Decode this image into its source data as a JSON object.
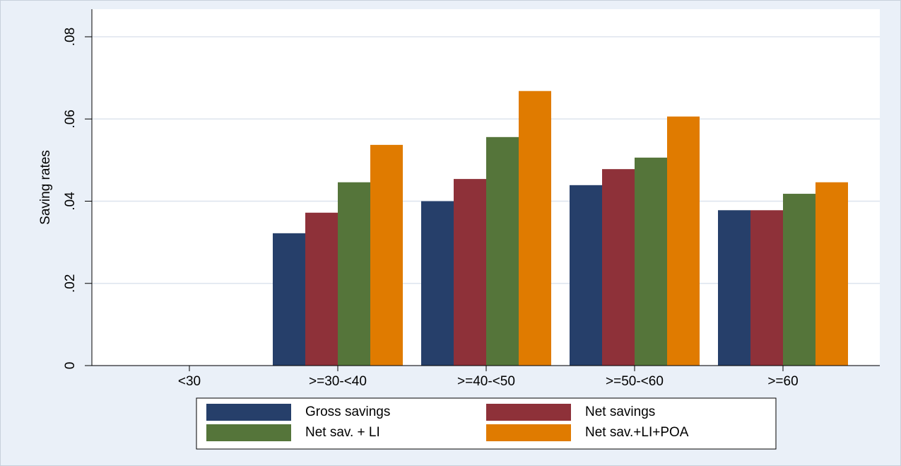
{
  "chart_data": {
    "type": "bar",
    "y_label": "Saving rates",
    "categories": [
      "<30",
      ">=30-<40",
      ">=40-<50",
      ">=50-<60",
      ">=60"
    ],
    "series": [
      {
        "name": "Gross savings",
        "color": "#263f6a",
        "values": [
          null,
          0.0322,
          0.04,
          0.0439,
          0.0378
        ]
      },
      {
        "name": "Net savings",
        "color": "#8e3139",
        "values": [
          null,
          0.0372,
          0.0454,
          0.0478,
          0.0378
        ]
      },
      {
        "name": "Net sav. + LI",
        "color": "#55753a",
        "values": [
          null,
          0.0446,
          0.0556,
          0.0506,
          0.0418
        ]
      },
      {
        "name": "Net sav.+LI+POA",
        "color": "#e07b00",
        "values": [
          null,
          0.0537,
          0.0668,
          0.0606,
          0.0446
        ]
      }
    ],
    "ylim": [
      0,
      0.08
    ],
    "yticks": [
      0,
      {
        "value": 0.02,
        "label": ".02"
      },
      {
        "value": 0.04,
        "label": ".04"
      },
      {
        "value": 0.06,
        "label": ".06"
      },
      {
        "value": 0.08,
        "label": ".08"
      }
    ],
    "grid": true
  }
}
